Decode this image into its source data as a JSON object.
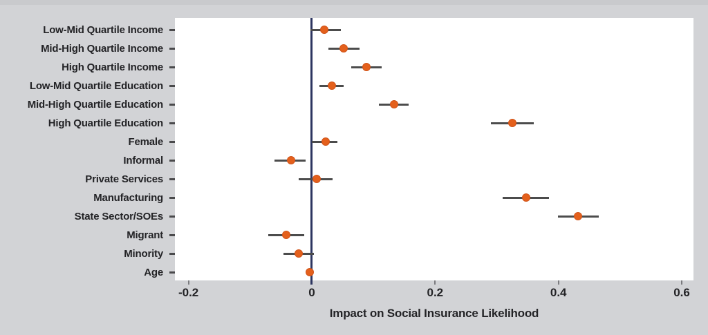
{
  "chart_data": {
    "type": "scatter",
    "variant": "coefficient-dot-whisker",
    "title": "",
    "xlabel": "Impact on Social Insurance Likelihood",
    "ylabel": "",
    "xlim": [
      -0.222,
      0.619
    ],
    "grid": false,
    "legend": "none",
    "reference_line_x": 0,
    "x_ticks": [
      {
        "value": -0.2,
        "label": "-0.2"
      },
      {
        "value": 0,
        "label": "0"
      },
      {
        "value": 0.2,
        "label": "0.2"
      },
      {
        "value": 0.4,
        "label": "0.4"
      },
      {
        "value": 0.6,
        "label": "0.6"
      }
    ],
    "points": [
      {
        "label": "Low-Mid Quartile Income",
        "value": 0.02,
        "ci_low": -0.002,
        "ci_high": 0.047
      },
      {
        "label": "Mid-High Quartile Income",
        "value": 0.052,
        "ci_low": 0.027,
        "ci_high": 0.077
      },
      {
        "label": "High Quartile Income",
        "value": 0.089,
        "ci_low": 0.064,
        "ci_high": 0.113
      },
      {
        "label": "Low-Mid Quartile Education",
        "value": 0.032,
        "ci_low": 0.012,
        "ci_high": 0.052
      },
      {
        "label": "Mid-High Quartile Education",
        "value": 0.134,
        "ci_low": 0.109,
        "ci_high": 0.157
      },
      {
        "label": "High Quartile Education",
        "value": 0.325,
        "ci_low": 0.29,
        "ci_high": 0.36
      },
      {
        "label": "Female",
        "value": 0.022,
        "ci_low": 0.0,
        "ci_high": 0.042
      },
      {
        "label": "Informal",
        "value": -0.034,
        "ci_low": -0.061,
        "ci_high": -0.01
      },
      {
        "label": "Private Services",
        "value": 0.008,
        "ci_low": -0.021,
        "ci_high": 0.034
      },
      {
        "label": "Manufacturing",
        "value": 0.348,
        "ci_low": 0.31,
        "ci_high": 0.385
      },
      {
        "label": "State Sector/SOEs",
        "value": 0.432,
        "ci_low": 0.399,
        "ci_high": 0.465
      },
      {
        "label": "Migrant",
        "value": -0.042,
        "ci_low": -0.071,
        "ci_high": -0.012
      },
      {
        "label": "Minority",
        "value": -0.021,
        "ci_low": -0.046,
        "ci_high": 0.003
      },
      {
        "label": "Age",
        "value": -0.003,
        "ci_low": -0.006,
        "ci_high": 0.001
      }
    ]
  },
  "colors": {
    "background": "#d2d3d6",
    "plot_background": "#ffffff",
    "dot": "#e4601c",
    "whisker": "#4c4c4c",
    "reference_line": "#2c3560",
    "text": "#232326",
    "y_tick": "#4a4a4c",
    "x_tick": "#7a7a7e"
  }
}
